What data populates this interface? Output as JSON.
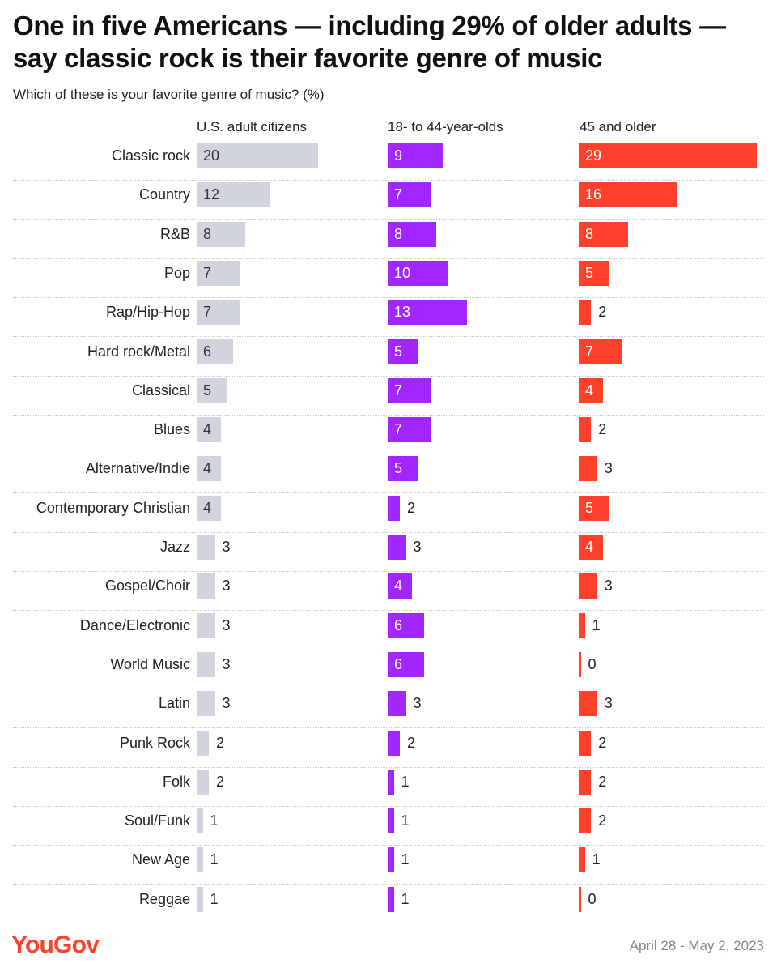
{
  "header": {
    "title": "One in five Americans — including 29% of older adults — say classic rock is their favorite genre of music",
    "subtitle": "Which of these is your favorite genre of music? (%)"
  },
  "footer": {
    "logo": "YouGov",
    "date": "April 28 - May 2, 2023"
  },
  "colors": {
    "us": "#d1d4dd",
    "young": "#a126ff",
    "old": "#ff412c"
  },
  "chart_data": {
    "type": "bar",
    "orientation": "horizontal",
    "title": "One in five Americans — including 29% of older adults — say classic rock is their favorite genre of music",
    "subtitle": "Which of these is your favorite genre of music? (%)",
    "categories": [
      "Classic rock",
      "Country",
      "R&B",
      "Pop",
      "Rap/Hip-Hop",
      "Hard rock/Metal",
      "Classical",
      "Blues",
      "Alternative/Indie",
      "Contemporary Christian",
      "Jazz",
      "Gospel/Choir",
      "Dance/Electronic",
      "World Music",
      "Latin",
      "Punk Rock",
      "Folk",
      "Soul/Funk",
      "New Age",
      "Reggae"
    ],
    "series": [
      {
        "name": "U.S. adult citizens",
        "values": [
          20,
          12,
          8,
          7,
          7,
          6,
          5,
          4,
          4,
          4,
          3,
          3,
          3,
          3,
          3,
          2,
          2,
          1,
          1,
          1
        ]
      },
      {
        "name": "18- to 44-year-olds",
        "values": [
          9,
          7,
          8,
          10,
          13,
          5,
          7,
          7,
          5,
          2,
          3,
          4,
          6,
          6,
          3,
          2,
          1,
          1,
          1,
          1
        ]
      },
      {
        "name": "45 and older",
        "values": [
          29,
          16,
          8,
          5,
          2,
          7,
          4,
          2,
          3,
          5,
          4,
          3,
          1,
          0,
          3,
          2,
          2,
          2,
          1,
          0
        ]
      }
    ],
    "grid": false,
    "legend": "column headers above each panel"
  }
}
